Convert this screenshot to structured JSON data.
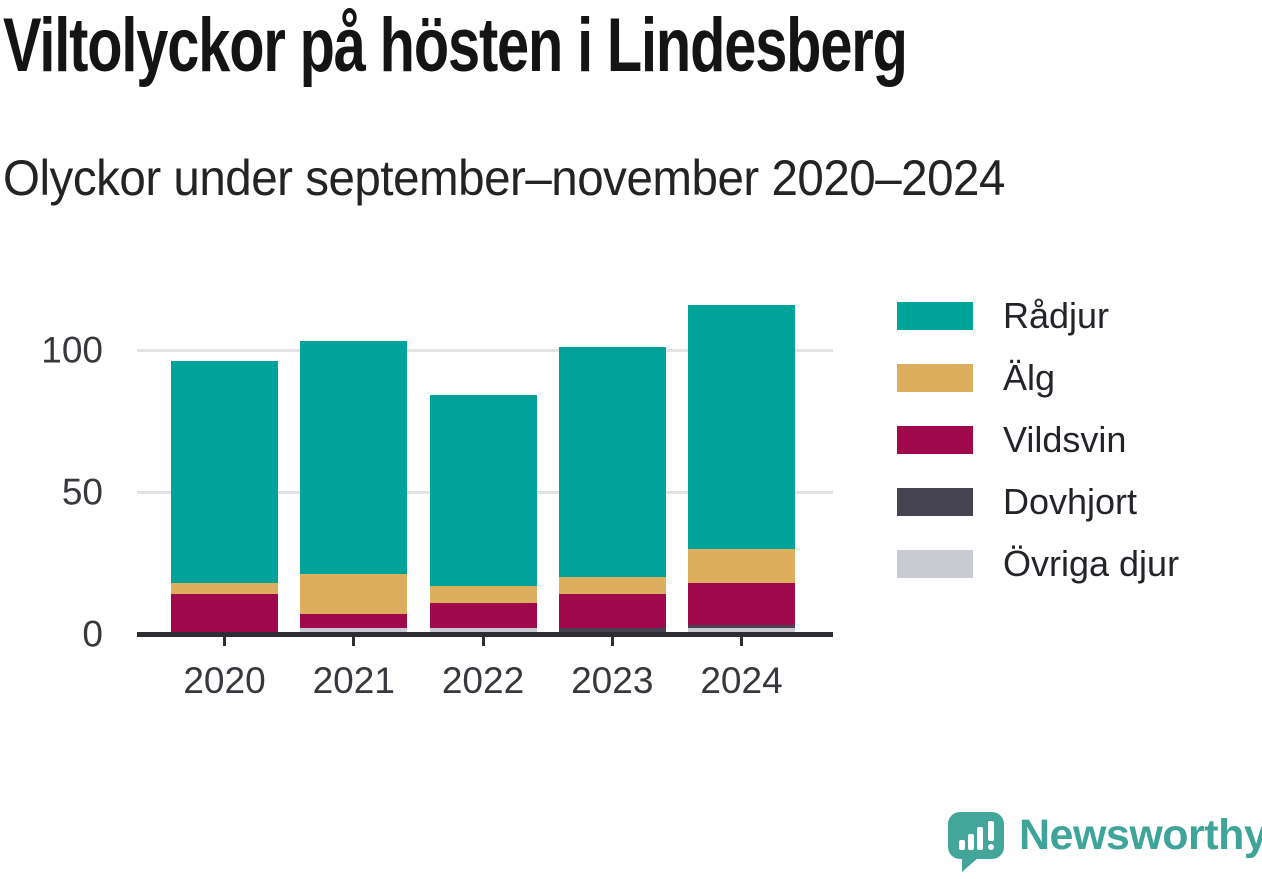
{
  "title": "Viltolyckor på hösten i Lindesberg",
  "subtitle": "Olyckor under september–november 2020–2024",
  "chart_data": {
    "type": "bar",
    "stacked": true,
    "title": "Viltolyckor på hösten i Lindesberg",
    "subtitle": "Olyckor under september–november 2020–2024",
    "categories": [
      "2020",
      "2021",
      "2022",
      "2023",
      "2024"
    ],
    "series": [
      {
        "name": "Rådjur",
        "color": "#00a39a",
        "values": [
          78,
          82,
          67,
          81,
          86
        ]
      },
      {
        "name": "Älg",
        "color": "#dcae5e",
        "values": [
          4,
          14,
          6,
          6,
          12
        ]
      },
      {
        "name": "Vildsvin",
        "color": "#a00a4d",
        "values": [
          14,
          5,
          9,
          12,
          15
        ]
      },
      {
        "name": "Dovhjort",
        "color": "#45434f",
        "values": [
          0,
          0,
          0,
          2,
          1
        ]
      },
      {
        "name": "Övriga djur",
        "color": "#c9cad1",
        "values": [
          0,
          2,
          2,
          0,
          2
        ]
      }
    ],
    "totals": [
      96,
      103,
      84,
      101,
      116
    ],
    "xlabel": "",
    "ylabel": "",
    "yticks": [
      0,
      50,
      100
    ],
    "ylim": [
      0,
      128
    ],
    "grid": "horizontal",
    "legend_position": "right"
  },
  "legend": {
    "items": [
      "Rådjur",
      "Älg",
      "Vildsvin",
      "Dovhjort",
      "Övriga djur"
    ]
  },
  "footer": {
    "brand": "Newsworthy",
    "brand_color": "#3fa59a"
  }
}
